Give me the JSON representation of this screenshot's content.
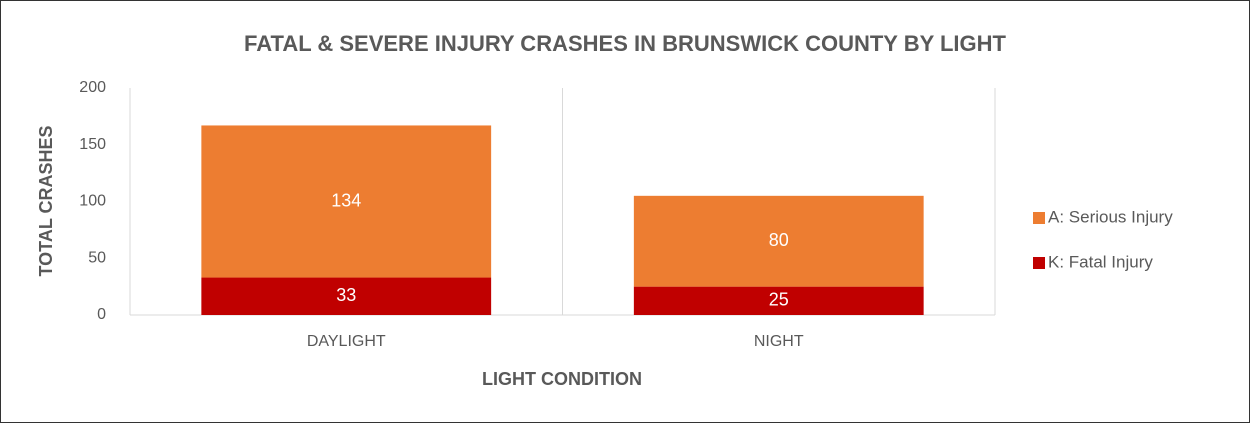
{
  "chart_data": {
    "type": "stacked_bar",
    "title": "FATAL & SEVERE INJURY CRASHES IN BRUNSWICK COUNTY BY LIGHT",
    "x_label": "LIGHT CONDITION",
    "y_label": "TOTAL CRASHES",
    "categories": [
      "DAYLIGHT",
      "NIGHT"
    ],
    "series": [
      {
        "name": "K: Fatal Injury",
        "color": "#C00000",
        "values": [
          33,
          25
        ]
      },
      {
        "name": "A: Serious Injury",
        "color": "#ED7D31",
        "values": [
          134,
          80
        ]
      }
    ],
    "ylim": [
      0,
      200
    ],
    "yticks": [
      0,
      50,
      100,
      150,
      200
    ],
    "legend": "right"
  }
}
